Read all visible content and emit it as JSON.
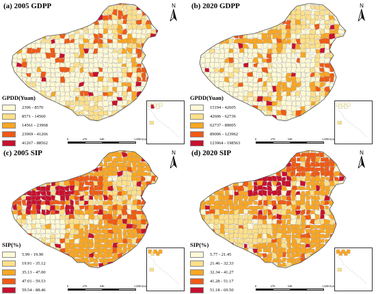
{
  "panels": [
    {
      "title": "(a) 2005 GDPP",
      "legend_title": "GPDD(Yuan)",
      "palette": [
        "#fef9d6",
        "#fde08a",
        "#f9a622",
        "#f05a14",
        "#c8102e"
      ],
      "classes": [
        "2396 - 8570",
        "8571 - 14560",
        "14561 - 23968",
        "23969 - 41266",
        "41267 - 88562"
      ],
      "pattern": "gdp05"
    },
    {
      "title": "(b) 2020 GDPP",
      "legend_title": "GPDD(Yuan)",
      "palette": [
        "#fef9d6",
        "#fde08a",
        "#f9a622",
        "#f05a14",
        "#c8102e"
      ],
      "classes": [
        "15194 - 42605",
        "42606 - 62736",
        "62737 - 89005",
        "89006 - 123962",
        "123964 - 198563"
      ],
      "pattern": "gdp20"
    },
    {
      "title": "(c) 2005 SIP",
      "legend_title": "SIP(%)",
      "palette": [
        "#fef9d6",
        "#fde08a",
        "#f9a622",
        "#f05a14",
        "#c8102e"
      ],
      "classes": [
        "5.99 - 19.90",
        "19.91 - 35.12",
        "35.13 - 47.00",
        "47.01 - 59.53",
        "59.54 - 88.46"
      ],
      "pattern": "sip05"
    },
    {
      "title": "(d) 2020 SIP",
      "legend_title": "SIP(%)",
      "palette": [
        "#fef9d6",
        "#fde08a",
        "#f9a622",
        "#f05a14",
        "#c8102e"
      ],
      "classes": [
        "5.77 - 21.45",
        "21.46 - 32.33",
        "32.34 - 41.27",
        "41.28 - 51.17",
        "51.18 - 69.50"
      ],
      "pattern": "sip20"
    }
  ],
  "scale_ticks": [
    "0",
    "270",
    "540",
    "1,080 Kilometers"
  ],
  "north_label": "N"
}
